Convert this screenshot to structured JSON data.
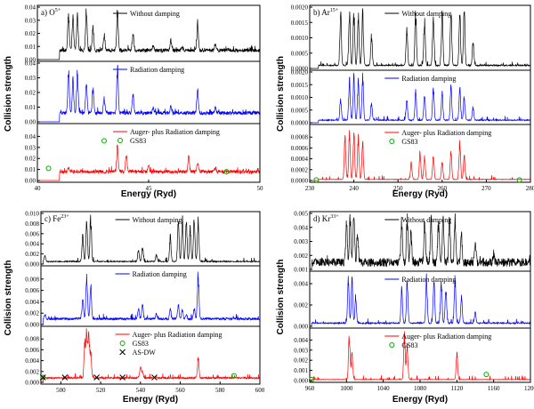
{
  "chart_data": [
    {
      "type": "line",
      "label": "a) O",
      "ion_charge": "5+",
      "xlabel": "Energy (Ryd)",
      "ylabel": "Collision strength",
      "xlim": [
        40,
        50
      ],
      "xticks": [
        40,
        45,
        50
      ],
      "series": [
        {
          "name": "Without damping",
          "color": "#000000",
          "ylim": [
            0,
            0.04
          ],
          "yticks": [
            "0.00",
            "0.01",
            "0.02",
            "0.03",
            "0.04"
          ],
          "threshold": 41.0,
          "base": 0.007,
          "peaks": [
            [
              41.4,
              0.04
            ],
            [
              41.6,
              0.035
            ],
            [
              41.8,
              0.04
            ],
            [
              42.2,
              0.04
            ],
            [
              42.5,
              0.028
            ],
            [
              43.0,
              0.02
            ],
            [
              43.6,
              0.04
            ],
            [
              44.3,
              0.022
            ],
            [
              45.2,
              0.012
            ],
            [
              46.0,
              0.015
            ],
            [
              46.5,
              0.01
            ],
            [
              47.2,
              0.03
            ],
            [
              48.0,
              0.012
            ],
            [
              48.6,
              0.008
            ]
          ]
        },
        {
          "name": "Radiation damping",
          "color": "#0000ff",
          "ylim": [
            0,
            0.04
          ],
          "yticks": [
            "0.00",
            "0.01",
            "0.02",
            "0.03",
            "0.04"
          ],
          "threshold": 41.0,
          "base": 0.006,
          "peaks": [
            [
              41.4,
              0.04
            ],
            [
              41.6,
              0.032
            ],
            [
              41.8,
              0.038
            ],
            [
              42.2,
              0.03
            ],
            [
              42.5,
              0.025
            ],
            [
              43.0,
              0.018
            ],
            [
              43.6,
              0.04
            ],
            [
              44.3,
              0.02
            ],
            [
              45.2,
              0.01
            ],
            [
              46.0,
              0.012
            ],
            [
              47.2,
              0.025
            ],
            [
              48.0,
              0.01
            ]
          ]
        },
        {
          "name": "Auger- plus Radiation damping",
          "color": "#ff0000",
          "ylim": [
            0,
            0.05
          ],
          "yticks": [
            "0.00",
            "0.01",
            "0.02",
            "0.03",
            "0.04"
          ],
          "threshold": 41.0,
          "base": 0.008,
          "peaks": [
            [
              41.4,
              0.012
            ],
            [
              43.6,
              0.035
            ],
            [
              44.0,
              0.025
            ],
            [
              45.0,
              0.015
            ],
            [
              46.8,
              0.025
            ],
            [
              47.2,
              0.018
            ],
            [
              48.0,
              0.012
            ]
          ],
          "gs83": {
            "name": "GS83",
            "points": [
              [
                40.5,
                0.011
              ],
              [
                43.0,
                0.036
              ],
              [
                48.5,
                0.008
              ]
            ]
          }
        }
      ]
    },
    {
      "type": "line",
      "label": "b) Ar",
      "ion_charge": "15+",
      "xlabel": "Energy (Ryd)",
      "ylabel": "Collision strength",
      "xlim": [
        230,
        280
      ],
      "xticks": [
        230,
        240,
        250,
        260,
        270,
        280
      ],
      "series": [
        {
          "name": "Without damping",
          "color": "#000000",
          "ylim": [
            0,
            0.002
          ],
          "yticks": [
            "0.0000",
            "0.0005",
            "0.0010",
            "0.0015",
            "0.0020"
          ],
          "threshold": 232.0,
          "base": 0.0001,
          "peaks": [
            [
              237,
              0.002
            ],
            [
              239,
              0.002
            ],
            [
              240,
              0.002
            ],
            [
              241,
              0.002
            ],
            [
              242,
              0.002
            ],
            [
              244,
              0.0012
            ],
            [
              252,
              0.0015
            ],
            [
              254,
              0.002
            ],
            [
              256,
              0.0018
            ],
            [
              258,
              0.002
            ],
            [
              260,
              0.002
            ],
            [
              262,
              0.002
            ],
            [
              264,
              0.002
            ],
            [
              265,
              0.002
            ],
            [
              267,
              0.001
            ]
          ]
        },
        {
          "name": "Radiation damping",
          "color": "#0000ff",
          "ylim": [
            0,
            0.002
          ],
          "yticks": [
            "0.0000",
            "0.0005",
            "0.0010",
            "0.0015",
            "0.0020"
          ],
          "threshold": 232.0,
          "base": 0.0001,
          "peaks": [
            [
              237,
              0.001
            ],
            [
              239,
              0.002
            ],
            [
              240,
              0.002
            ],
            [
              241,
              0.0018
            ],
            [
              242,
              0.002
            ],
            [
              244,
              0.0009
            ],
            [
              252,
              0.001
            ],
            [
              254,
              0.0014
            ],
            [
              256,
              0.0012
            ],
            [
              258,
              0.0016
            ],
            [
              260,
              0.0013
            ],
            [
              262,
              0.0015
            ],
            [
              264,
              0.0016
            ],
            [
              265,
              0.0011
            ],
            [
              267,
              0.0007
            ]
          ]
        },
        {
          "name": "Auger- plus Radiation damping",
          "color": "#ff0000",
          "ylim": [
            0,
            0.001
          ],
          "yticks": [
            "0.0000",
            "0.0002",
            "0.0004",
            "0.0006",
            "0.0008"
          ],
          "threshold": 232.0,
          "base": 2e-05,
          "peaks": [
            [
              238,
              0.0009
            ],
            [
              239,
              0.001
            ],
            [
              240,
              0.001
            ],
            [
              241,
              0.0009
            ],
            [
              242,
              0.0008
            ],
            [
              253,
              0.0004
            ],
            [
              255,
              0.0006
            ],
            [
              256,
              0.0005
            ],
            [
              258,
              0.0005
            ],
            [
              260,
              0.0004
            ],
            [
              262,
              0.0006
            ],
            [
              264,
              0.0008
            ],
            [
              265,
              0.0005
            ]
          ],
          "gs83": {
            "name": "GS83",
            "points": [
              [
                231.5,
                1e-05
              ],
              [
                277.5,
                1e-05
              ]
            ]
          }
        }
      ]
    },
    {
      "type": "line",
      "label": "c) Fe",
      "ion_charge": "23+",
      "xlabel": "Energy (Ryd)",
      "ylabel": "Collision strength",
      "xlim": [
        490,
        600
      ],
      "xticks": [
        500,
        520,
        540,
        560,
        580,
        600
      ],
      "series": [
        {
          "name": "Without damping",
          "color": "#000000",
          "ylim": [
            0,
            0.01
          ],
          "yticks": [
            "0.000",
            "0.002",
            "0.004",
            "0.006",
            "0.008",
            "0.010"
          ],
          "threshold": 491.0,
          "base": 0.0005,
          "peaks": [
            [
              492,
              0.002
            ],
            [
              511,
              0.006
            ],
            [
              513,
              0.01
            ],
            [
              515,
              0.01
            ],
            [
              539,
              0.003
            ],
            [
              541,
              0.004
            ],
            [
              548,
              0.002
            ],
            [
              555,
              0.006
            ],
            [
              559,
              0.01
            ],
            [
              561,
              0.01
            ],
            [
              563,
              0.01
            ],
            [
              565,
              0.008
            ],
            [
              567,
              0.01
            ],
            [
              569,
              0.01
            ]
          ]
        },
        {
          "name": "Radiation damping",
          "color": "#0000ff",
          "ylim": [
            0,
            0.01
          ],
          "yticks": [
            "0.000",
            "0.002",
            "0.004",
            "0.006",
            "0.008"
          ],
          "threshold": 491.0,
          "base": 0.001,
          "peaks": [
            [
              492,
              0.002
            ],
            [
              511,
              0.005
            ],
            [
              513,
              0.01
            ],
            [
              515,
              0.008
            ],
            [
              539,
              0.003
            ],
            [
              541,
              0.004
            ],
            [
              548,
              0.002
            ],
            [
              555,
              0.003
            ],
            [
              559,
              0.004
            ],
            [
              561,
              0.003
            ],
            [
              563,
              0.002
            ],
            [
              567,
              0.003
            ],
            [
              569,
              0.01
            ]
          ]
        },
        {
          "name": "Auger- plus Radiation damping",
          "color": "#ff0000",
          "ylim": [
            0,
            0.01
          ],
          "yticks": [
            "0.000",
            "0.002",
            "0.004",
            "0.006",
            "0.008"
          ],
          "threshold": 491.0,
          "base": 0.0008,
          "peaks": [
            [
              512,
              0.008
            ],
            [
              513,
              0.01
            ],
            [
              514,
              0.009
            ],
            [
              515,
              0.006
            ],
            [
              540,
              0.003
            ],
            [
              541,
              0.002
            ],
            [
              569,
              0.005
            ]
          ],
          "gs83": {
            "name": "GS83",
            "points": [
              [
                491,
                0.0009
              ],
              [
                587,
                0.0012
              ]
            ]
          },
          "asdw": {
            "name": "AS-DW",
            "points": [
              [
                491,
                0.0009
              ],
              [
                502,
                0.0009
              ],
              [
                518,
                0.0009
              ],
              [
                531,
                0.0009
              ],
              [
                547,
                0.0009
              ]
            ]
          }
        }
      ]
    },
    {
      "type": "line",
      "label": "d) Kr",
      "ion_charge": "33+",
      "xlabel": "Energy (Ryd)",
      "ylabel": "Collision strength",
      "xlim": [
        960,
        1200
      ],
      "xticks": [
        960,
        1000,
        1040,
        1080,
        1120,
        1160,
        1200
      ],
      "series": [
        {
          "name": "Without damping",
          "color": "#000000",
          "ylim": [
            0.001,
            0.005
          ],
          "yticks": [
            "0.001",
            "0.002",
            "0.003",
            "0.004",
            "0.005"
          ],
          "threshold": 962.0,
          "base": 0.0015,
          "peaks": [
            [
              1000,
              0.005
            ],
            [
              1004,
              0.005
            ],
            [
              1008,
              0.005
            ],
            [
              1012,
              0.004
            ],
            [
              1060,
              0.005
            ],
            [
              1066,
              0.005
            ],
            [
              1070,
              0.004
            ],
            [
              1085,
              0.005
            ],
            [
              1092,
              0.005
            ],
            [
              1100,
              0.005
            ],
            [
              1105,
              0.005
            ],
            [
              1112,
              0.005
            ],
            [
              1118,
              0.005
            ],
            [
              1125,
              0.004
            ],
            [
              1140,
              0.003
            ],
            [
              1160,
              0.002
            ]
          ]
        },
        {
          "name": "Radiation damping",
          "color": "#0000ff",
          "ylim": [
            0,
            0.005
          ],
          "yticks": [
            "0.000",
            "0.002",
            "0.004"
          ],
          "threshold": 962.0,
          "base": 0.0003,
          "peaks": [
            [
              1002,
              0.005
            ],
            [
              1006,
              0.005
            ],
            [
              1010,
              0.003
            ],
            [
              1060,
              0.004
            ],
            [
              1066,
              0.005
            ],
            [
              1087,
              0.005
            ],
            [
              1095,
              0.005
            ],
            [
              1103,
              0.005
            ],
            [
              1108,
              0.004
            ],
            [
              1118,
              0.005
            ],
            [
              1125,
              0.003
            ],
            [
              1140,
              0.0015
            ]
          ]
        },
        {
          "name": "Auger- plus Radiation damping",
          "color": "#ff0000",
          "ylim": [
            0,
            0.005
          ],
          "yticks": [
            "0.000",
            "0.001",
            "0.002",
            "0.003",
            "0.004"
          ],
          "threshold": 962.0,
          "base": 0.0001,
          "peaks": [
            [
              1003,
              0.005
            ],
            [
              1006,
              0.003
            ],
            [
              1063,
              0.005
            ],
            [
              1066,
              0.004
            ],
            [
              1120,
              0.003
            ]
          ],
          "gs83": {
            "name": "GS83",
            "points": [
              [
                962,
                0.0001
              ],
              [
                1152,
                0.0006
              ]
            ]
          }
        }
      ]
    }
  ]
}
